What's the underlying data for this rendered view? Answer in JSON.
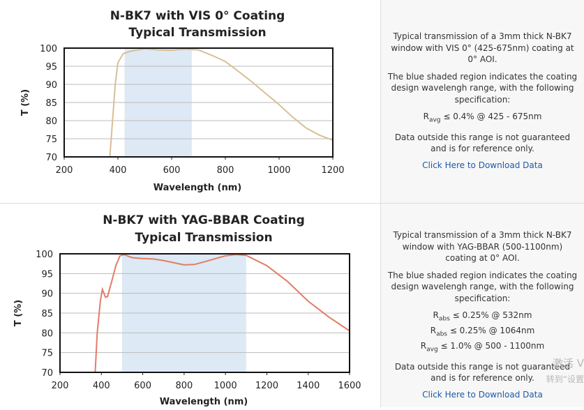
{
  "rows": [
    {
      "chart": {
        "type": "line",
        "title": "N-BK7 with VIS 0° Coating",
        "subtitle": "Typical Transmission",
        "xlabel": "Wavelength (nm)",
        "ylabel": "T (%)",
        "xlim": [
          200,
          1200
        ],
        "ylim": [
          70,
          100
        ],
        "xticks": [
          200,
          400,
          600,
          800,
          1000,
          1200
        ],
        "yticks": [
          70,
          75,
          80,
          85,
          90,
          95,
          100
        ],
        "grid": true,
        "shaded_range": [
          425,
          675
        ],
        "shade_color": "#dde9f5",
        "series": [
          {
            "color": "#d8bf95",
            "x": [
              370,
              380,
              390,
              400,
              420,
              450,
              500,
              550,
              600,
              650,
              700,
              750,
              800,
              850,
              900,
              950,
              1000,
              1050,
              1100,
              1150,
              1200
            ],
            "values": [
              70,
              80,
              90,
              96,
              98.5,
              99.2,
              99.8,
              99.5,
              99.4,
              99.7,
              99.5,
              98,
              96.3,
              93.5,
              90.6,
              87.5,
              84.4,
              81,
              78,
              76,
              74.6
            ]
          }
        ]
      },
      "description": {
        "paragraphs": [
          "Typical transmission of a 3mm thick N-BK7 window with VIS 0° (425-675nm) coating at 0° AOI.",
          "The blue shaded region indicates the coating design wavelengh range, with the following specification:"
        ],
        "specs": [
          {
            "symbol": "R",
            "sub": "avg",
            "text": "≤ 0.4% @ 425 - 675nm"
          }
        ],
        "note": "Data outside this range is not guaranteed and is for reference only.",
        "link": "Click Here to Download Data"
      }
    },
    {
      "chart": {
        "type": "line",
        "title": "N-BK7 with YAG-BBAR Coating",
        "subtitle": "Typical Transmission",
        "xlabel": "Wavelength (nm)",
        "ylabel": "T (%)",
        "xlim": [
          200,
          1600
        ],
        "ylim": [
          70,
          100
        ],
        "xticks": [
          200,
          400,
          600,
          800,
          1000,
          1200,
          1400,
          1600
        ],
        "yticks": [
          70,
          75,
          80,
          85,
          90,
          95,
          100
        ],
        "grid": true,
        "shaded_range": [
          500,
          1100
        ],
        "shade_color": "#dde9f5",
        "series": [
          {
            "color": "#e27c66",
            "x": [
              370,
              380,
              395,
              405,
              420,
              430,
              450,
              470,
              490,
              510,
              550,
              600,
              650,
              700,
              800,
              850,
              900,
              1000,
              1050,
              1100,
              1200,
              1300,
              1400,
              1450,
              1500,
              1600
            ],
            "values": [
              70,
              80,
              88,
              91,
              89,
              89.2,
              93,
              97,
              99.5,
              99.8,
              99,
              98.8,
              98.7,
              98.3,
              97.2,
              97.3,
              98,
              99.5,
              99.8,
              99.6,
              97,
              93,
              88,
              86,
              84,
              80.5
            ]
          }
        ]
      },
      "description": {
        "paragraphs": [
          "Typical transmission of a 3mm thick N-BK7 window with YAG-BBAR (500-1100nm) coating at 0° AOI.",
          "The blue shaded region indicates the coating design wavelengh range, with the following specification:"
        ],
        "specs": [
          {
            "symbol": "R",
            "sub": "abs",
            "text": "≤ 0.25% @ 532nm"
          },
          {
            "symbol": "R",
            "sub": "abs",
            "text": "≤ 0.25% @ 1064nm"
          },
          {
            "symbol": "R",
            "sub": "avg",
            "text": "≤ 1.0% @ 500 - 1100nm"
          }
        ],
        "note": "Data outside this range is not guaranteed and is for reference only.",
        "link": "Click Here to Download Data"
      }
    }
  ],
  "watermark": [
    "激活 V",
    "转到“设置"
  ]
}
